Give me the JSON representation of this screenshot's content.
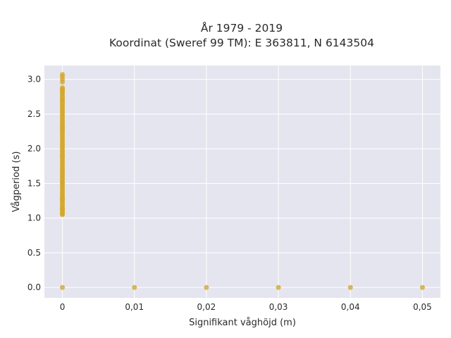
{
  "chart_data": {
    "type": "scatter",
    "title": [
      "År 1979 - 2019",
      "Koordinat (Sweref 99 TM): E 363811, N 6143504"
    ],
    "xlabel": "Signifikant våghöjd (m)",
    "ylabel": "Vågperiod (s)",
    "xlim": [
      -0.0025,
      0.0525
    ],
    "ylim": [
      -0.15,
      3.2
    ],
    "xticks": [
      0,
      0.01,
      0.02,
      0.03,
      0.04,
      0.05
    ],
    "xtick_labels": [
      "0",
      "0,01",
      "0,02",
      "0,03",
      "0,04",
      "0,05"
    ],
    "yticks": [
      0,
      0.5,
      1.0,
      1.5,
      2.0,
      2.5,
      3.0
    ],
    "ytick_labels": [
      "0.0",
      "0.5",
      "1.0",
      "1.5",
      "2.0",
      "2.5",
      "3.0"
    ],
    "grid": true,
    "background": "#e5e5ef",
    "point_color": "#d4a72c",
    "series": [
      {
        "x": [
          0,
          0,
          0,
          0,
          0,
          0,
          0,
          0,
          0,
          0,
          0,
          0,
          0,
          0,
          0,
          0,
          0,
          0,
          0,
          0,
          0,
          0,
          0,
          0,
          0,
          0,
          0,
          0,
          0,
          0,
          0,
          0,
          0,
          0,
          0,
          0,
          0,
          0,
          0,
          0,
          0,
          0,
          0,
          0,
          0,
          0,
          0,
          0,
          0,
          0,
          0,
          0,
          0,
          0,
          0,
          0,
          0,
          0,
          0,
          0,
          0,
          0,
          0,
          0,
          0,
          0,
          0,
          0,
          0,
          0,
          0,
          0,
          0,
          0,
          0,
          0,
          0,
          0,
          0,
          0,
          0,
          0,
          0,
          0,
          0,
          0,
          0,
          0,
          0.01,
          0.02,
          0.03,
          0.04,
          0.05
        ],
        "y": [
          0,
          1.05,
          1.08,
          1.1,
          1.12,
          1.15,
          1.17,
          1.2,
          1.22,
          1.25,
          1.27,
          1.3,
          1.32,
          1.35,
          1.37,
          1.4,
          1.42,
          1.45,
          1.47,
          1.5,
          1.52,
          1.55,
          1.57,
          1.6,
          1.62,
          1.65,
          1.67,
          1.7,
          1.72,
          1.75,
          1.77,
          1.8,
          1.82,
          1.85,
          1.87,
          1.9,
          1.92,
          1.95,
          1.97,
          2.0,
          2.02,
          2.05,
          2.07,
          2.1,
          2.12,
          2.15,
          2.17,
          2.2,
          2.22,
          2.25,
          2.27,
          2.3,
          2.32,
          2.35,
          2.37,
          2.4,
          2.42,
          2.45,
          2.47,
          2.5,
          2.52,
          2.55,
          2.57,
          2.6,
          2.62,
          2.65,
          2.67,
          2.7,
          2.72,
          2.75,
          2.77,
          2.8,
          2.82,
          2.84,
          2.86,
          2.88,
          2.96,
          3.0,
          3.04,
          3.07,
          1.06,
          1.13,
          1.28,
          1.5,
          1.9,
          2.3,
          2.7,
          2.85,
          0,
          0,
          0,
          0,
          0
        ]
      }
    ]
  }
}
